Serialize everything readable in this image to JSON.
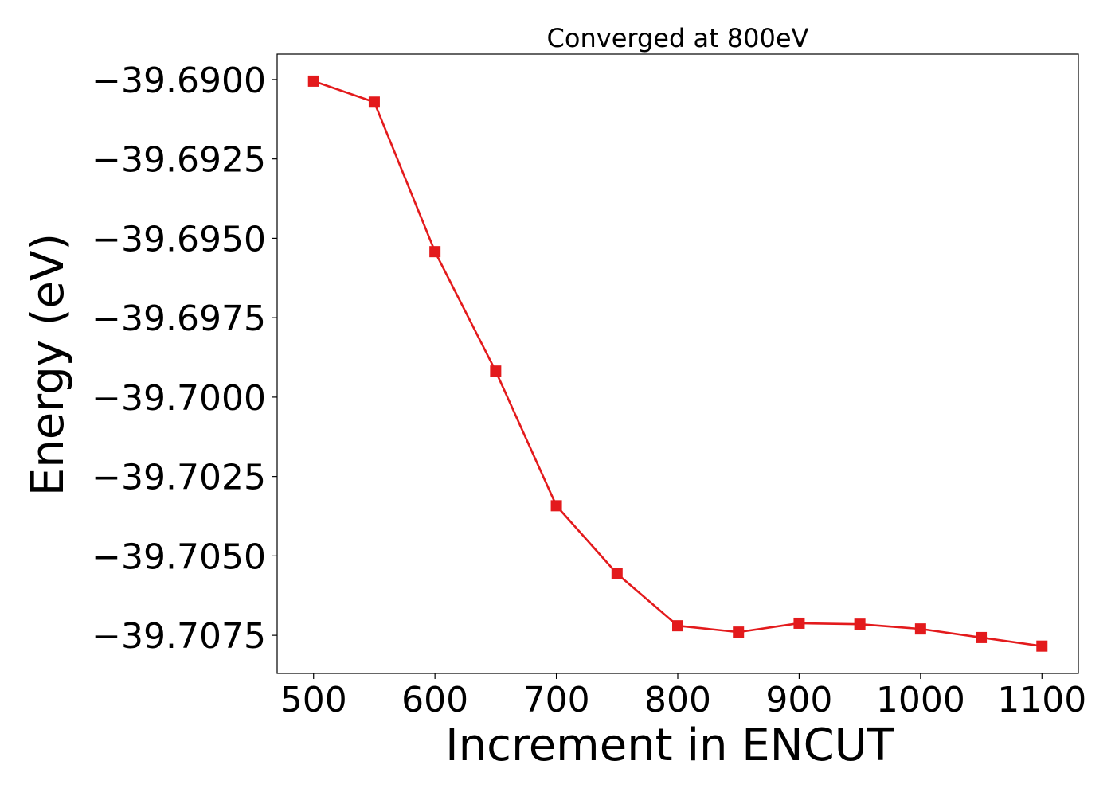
{
  "chart_data": {
    "type": "line",
    "title": "Converged at 800eV",
    "xlabel": "Increment in ENCUT",
    "ylabel": "Energy (eV)",
    "xlim": [
      470,
      1130
    ],
    "ylim": [
      -39.7087,
      -39.6892
    ],
    "xticks": [
      500,
      600,
      700,
      800,
      900,
      1000,
      1100
    ],
    "xtick_labels": [
      "500",
      "600",
      "700",
      "800",
      "900",
      "1000",
      "1100"
    ],
    "yticks": [
      -39.69,
      -39.6925,
      -39.695,
      -39.6975,
      -39.7,
      -39.7025,
      -39.705,
      -39.7075
    ],
    "ytick_labels": [
      "−39.6900",
      "−39.6925",
      "−39.6950",
      "−39.6975",
      "−39.7000",
      "−39.7025",
      "−39.7050",
      "−39.7075"
    ],
    "grid": false,
    "series": [
      {
        "color": "#e31a1c",
        "marker": "square",
        "x": [
          500,
          550,
          600,
          650,
          700,
          750,
          800,
          850,
          900,
          950,
          1000,
          1050,
          1100
        ],
        "y": [
          -39.69005,
          -39.69071,
          -39.69542,
          -39.69918,
          -39.70342,
          -39.70556,
          -39.7072,
          -39.7074,
          -39.70712,
          -39.70715,
          -39.7073,
          -39.70757,
          -39.70784
        ]
      }
    ]
  }
}
